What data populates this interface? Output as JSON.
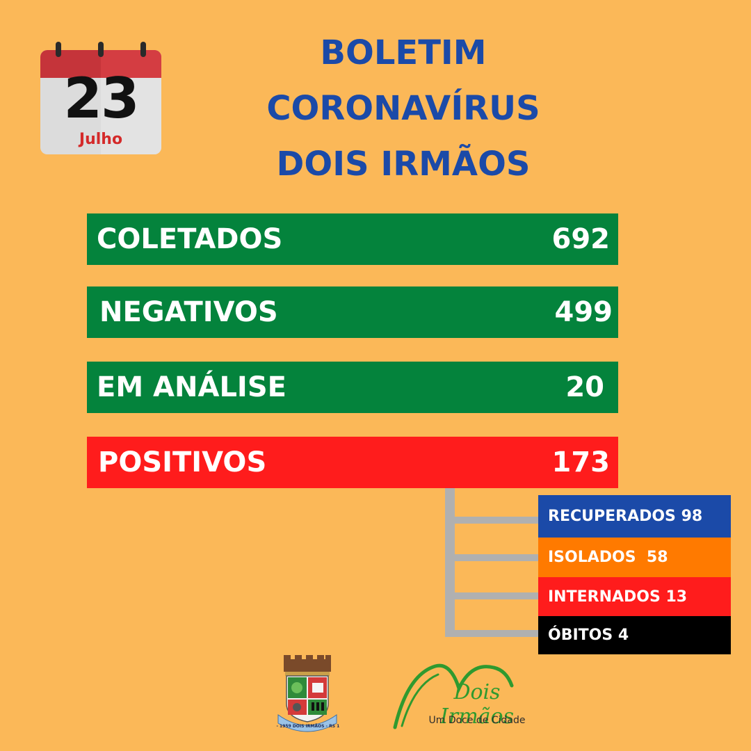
{
  "calendar": {
    "day": "23",
    "month": "Julho"
  },
  "title": {
    "line1": "BOLETIM",
    "line2": "CORONAVÍRUS",
    "line3": "DOIS IRMÃOS"
  },
  "stats": [
    {
      "label": "COLETADOS",
      "value": "692",
      "color": "#04833c"
    },
    {
      "label": "NEGATIVOS",
      "value": "499",
      "color": "#04833c"
    },
    {
      "label": "EM ANÁLISE",
      "value": "20",
      "color": "#04833c"
    },
    {
      "label": "POSITIVOS",
      "value": "173",
      "color": "#ff1c1c"
    }
  ],
  "positivos_breakdown": [
    {
      "label": "RECUPERADOS 98",
      "color": "#1b4aa8"
    },
    {
      "label": "ISOLADOS  58",
      "color": "#ff7a00"
    },
    {
      "label": "INTERNADOS 13",
      "color": "#ff1c1c"
    },
    {
      "label": "ÓBITOS 4",
      "color": "#000000"
    }
  ],
  "footer": {
    "crest_text": "Nº 10 - 1959 DOIS IRMÃOS - RS 10 - 09",
    "brand_name": "Dois Irmãos",
    "brand_tagline": "Um Doce de Cidade"
  },
  "colors": {
    "background": "#fbb858",
    "title": "#1b4aa8"
  }
}
